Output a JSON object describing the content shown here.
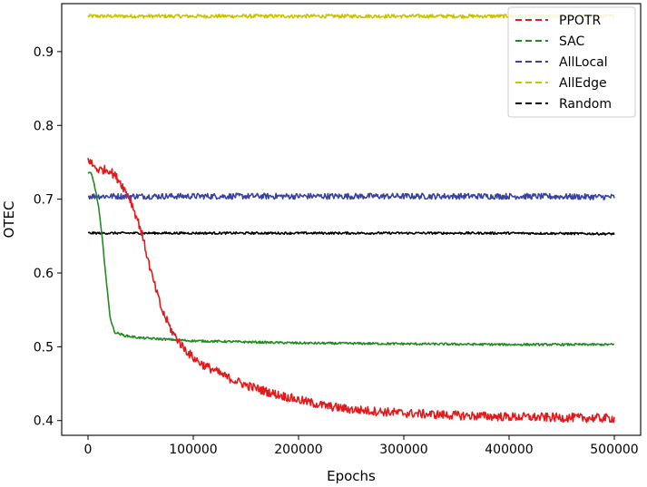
{
  "chart_data": {
    "type": "line",
    "title": "",
    "xlabel": "Epochs",
    "ylabel": "OTEC",
    "xlim": [
      -25000,
      525000
    ],
    "ylim": [
      0.38,
      0.965
    ],
    "xticks": [
      0,
      100000,
      200000,
      300000,
      400000,
      500000
    ],
    "xtick_labels": [
      "0",
      "100000",
      "200000",
      "300000",
      "400000",
      "500000"
    ],
    "yticks": [
      0.4,
      0.5,
      0.6,
      0.7,
      0.8,
      0.9
    ],
    "ytick_labels": [
      "0.4",
      "0.5",
      "0.6",
      "0.7",
      "0.8",
      "0.9"
    ],
    "grid": false,
    "legend_position": "top-right",
    "series": [
      {
        "name": "PPOTR",
        "color": "#e31a1c",
        "noise": 0.006,
        "x": [
          0,
          5000,
          10000,
          20000,
          30000,
          40000,
          50000,
          60000,
          70000,
          80000,
          90000,
          100000,
          110000,
          120000,
          130000,
          150000,
          175000,
          200000,
          225000,
          250000,
          300000,
          350000,
          400000,
          450000,
          500000
        ],
        "y": [
          0.755,
          0.745,
          0.74,
          0.74,
          0.725,
          0.7,
          0.66,
          0.6,
          0.55,
          0.52,
          0.5,
          0.485,
          0.475,
          0.468,
          0.46,
          0.448,
          0.437,
          0.428,
          0.42,
          0.415,
          0.41,
          0.407,
          0.405,
          0.404,
          0.403
        ]
      },
      {
        "name": "SAC",
        "color": "#238b23",
        "noise": 0.0015,
        "x": [
          0,
          3000,
          6000,
          10000,
          14000,
          18000,
          21000,
          25000,
          35000,
          50000,
          100000,
          200000,
          300000,
          400000,
          500000
        ],
        "y": [
          0.735,
          0.735,
          0.72,
          0.69,
          0.64,
          0.58,
          0.54,
          0.52,
          0.515,
          0.512,
          0.508,
          0.505,
          0.504,
          0.503,
          0.503
        ]
      },
      {
        "name": "AllLocal",
        "color": "#3a43a0",
        "noise": 0.004,
        "x": [
          0,
          100000,
          200000,
          300000,
          400000,
          500000
        ],
        "y": [
          0.704,
          0.704,
          0.704,
          0.704,
          0.704,
          0.703
        ]
      },
      {
        "name": "AllEdge",
        "color": "#c9c400",
        "noise": 0.0025,
        "x": [
          0,
          100000,
          200000,
          300000,
          400000,
          500000
        ],
        "y": [
          0.948,
          0.948,
          0.948,
          0.948,
          0.948,
          0.948
        ]
      },
      {
        "name": "Random",
        "color": "#000000",
        "noise": 0.0015,
        "x": [
          0,
          100000,
          200000,
          300000,
          400000,
          500000
        ],
        "y": [
          0.654,
          0.654,
          0.654,
          0.654,
          0.654,
          0.653
        ]
      }
    ]
  }
}
